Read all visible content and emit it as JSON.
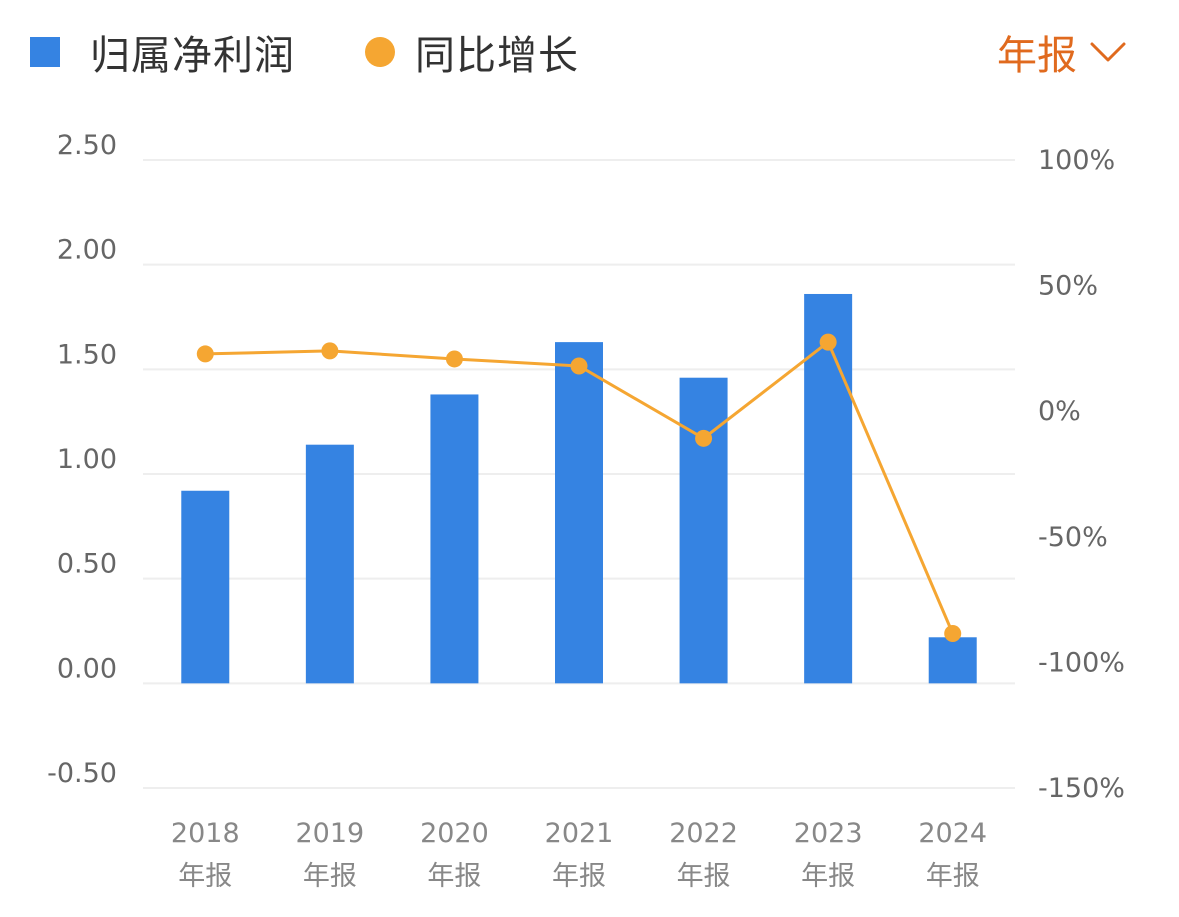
{
  "legend": {
    "bar_label": "归属净利润",
    "line_label": "同比增长"
  },
  "period_selector": {
    "label": "年报",
    "icon": "chevron-down-icon"
  },
  "colors": {
    "bar": "#3583e2",
    "line": "#f5a632",
    "accent": "#e06a1e",
    "grid": "#eeeeee"
  },
  "chart_data": {
    "type": "bar",
    "categories": [
      [
        "2018",
        "年报"
      ],
      [
        "2019",
        "年报"
      ],
      [
        "2020",
        "年报"
      ],
      [
        "2021",
        "年报"
      ],
      [
        "2022",
        "年报"
      ],
      [
        "2023",
        "年报"
      ],
      [
        "2024",
        "年报"
      ]
    ],
    "series": [
      {
        "name": "归属净利润",
        "type": "bar",
        "axis": "left",
        "values": [
          0.92,
          1.14,
          1.38,
          1.63,
          1.46,
          1.86,
          0.22
        ]
      },
      {
        "name": "同比增长",
        "type": "line",
        "axis": "right",
        "values": [
          22.8,
          24.0,
          20.8,
          18.0,
          -10.8,
          27.5,
          -88.5
        ]
      }
    ],
    "y_left": {
      "range": [
        -0.5,
        2.5
      ],
      "ticks": [
        "2.50",
        "2.00",
        "1.50",
        "1.00",
        "0.50",
        "0.00",
        "-0.50"
      ]
    },
    "y_right": {
      "range": [
        -150,
        100
      ],
      "ticks": [
        "100%",
        "50%",
        "0%",
        "-50%",
        "-100%",
        "-150%"
      ]
    },
    "grid": true,
    "legend_position": "top-left"
  }
}
